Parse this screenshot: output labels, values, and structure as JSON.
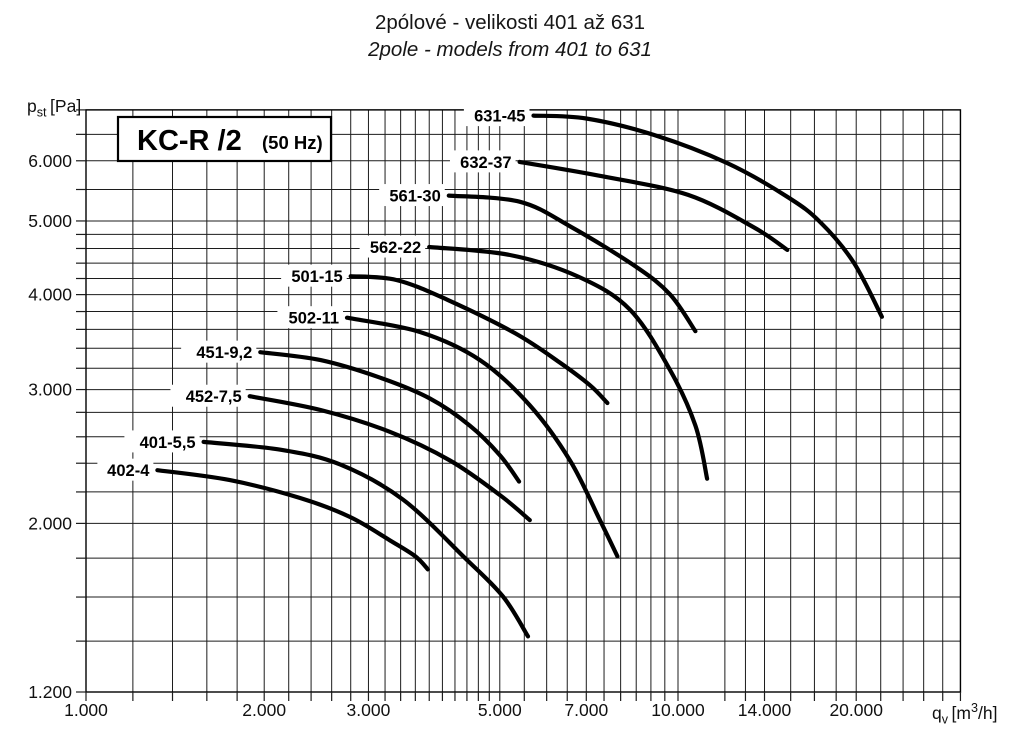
{
  "title": {
    "line1": "2pólové - velikosti 401 až 631",
    "line2": "2pole - models from 401 to 631"
  },
  "model_box": {
    "main": "KC-R /2",
    "suffix": "(50 Hz)"
  },
  "axes": {
    "y": {
      "pre": "p",
      "sub": "st",
      "post": "[Pa]"
    },
    "x": {
      "pre": "q",
      "sub": "v",
      "mid": "[m",
      "sup": "3",
      "end": "/h]"
    }
  },
  "colors": {
    "curve": "#000000",
    "grid": "#1c1c1c",
    "text": "#111111",
    "background": "#ffffff"
  },
  "chart_data": {
    "type": "line",
    "title": "KC-R /2 (50 Hz)",
    "xlabel": "qv [m3/h]",
    "ylabel": "pst [Pa]",
    "x_axis": {
      "scale": "log",
      "range": [
        1000,
        30000
      ],
      "ticks": [
        {
          "value": 1000,
          "label": "1.000"
        },
        {
          "value": 2000,
          "label": "2.000"
        },
        {
          "value": 3000,
          "label": "3.000"
        },
        {
          "value": 5000,
          "label": "5.000"
        },
        {
          "value": 7000,
          "label": "7.000"
        },
        {
          "value": 10000,
          "label": "10.000"
        },
        {
          "value": 14000,
          "label": "14.000"
        },
        {
          "value": 20000,
          "label": "20.000"
        }
      ]
    },
    "y_axis": {
      "scale": "log",
      "range": [
        1200,
        7000
      ],
      "ticks": [
        {
          "value": 6000,
          "label": "6.000"
        },
        {
          "value": 5000,
          "label": "5.000"
        },
        {
          "value": 4000,
          "label": "4.000"
        },
        {
          "value": 3000,
          "label": "3.000"
        },
        {
          "value": 2000,
          "label": "2.000"
        },
        {
          "value": 1200,
          "label": "1.200"
        }
      ]
    },
    "grid": {
      "x_lines": [
        1000,
        1200,
        1400,
        1600,
        1800,
        2000,
        2200,
        2400,
        2600,
        2800,
        3000,
        3200,
        3400,
        3600,
        3800,
        4000,
        4200,
        4400,
        4600,
        4800,
        5000,
        5500,
        6000,
        6500,
        7000,
        7500,
        8000,
        8500,
        9000,
        9500,
        10000,
        12000,
        13000,
        14000,
        15500,
        17000,
        18500,
        20000,
        22000,
        24000,
        26000,
        28000,
        30000
      ],
      "y_lines": [
        1200,
        1400,
        1600,
        1800,
        2000,
        2200,
        2400,
        2600,
        2800,
        3000,
        3200,
        3400,
        3600,
        3800,
        4000,
        4200,
        4400,
        4600,
        4800,
        5000,
        5500,
        6000,
        6500,
        7000
      ]
    },
    "series": [
      {
        "name": "631-45",
        "points": [
          [
            5700,
            6880
          ],
          [
            7000,
            6820
          ],
          [
            9100,
            6490
          ],
          [
            12100,
            5960
          ],
          [
            15300,
            5380
          ],
          [
            17400,
            4980
          ],
          [
            19800,
            4410
          ],
          [
            22100,
            3740
          ]
        ]
      },
      {
        "name": "632-37",
        "points": [
          [
            5400,
            5980
          ],
          [
            7500,
            5720
          ],
          [
            10400,
            5410
          ],
          [
            13400,
            4910
          ],
          [
            15300,
            4580
          ]
        ]
      },
      {
        "name": "561-30",
        "points": [
          [
            4100,
            5400
          ],
          [
            5400,
            5300
          ],
          [
            6600,
            4910
          ],
          [
            8500,
            4350
          ],
          [
            9700,
            4000
          ],
          [
            10700,
            3580
          ]
        ]
      },
      {
        "name": "562-22",
        "points": [
          [
            3800,
            4620
          ],
          [
            5200,
            4510
          ],
          [
            6800,
            4220
          ],
          [
            8300,
            3820
          ],
          [
            9700,
            3180
          ],
          [
            10700,
            2690
          ],
          [
            11200,
            2290
          ]
        ]
      },
      {
        "name": "501-15",
        "points": [
          [
            2800,
            4230
          ],
          [
            3350,
            4180
          ],
          [
            4100,
            3930
          ],
          [
            5300,
            3560
          ],
          [
            6300,
            3260
          ],
          [
            7100,
            3040
          ],
          [
            7600,
            2880
          ]
        ]
      },
      {
        "name": "502-11",
        "points": [
          [
            2760,
            3730
          ],
          [
            3670,
            3570
          ],
          [
            4630,
            3280
          ],
          [
            5620,
            2860
          ],
          [
            6570,
            2420
          ],
          [
            7380,
            2020
          ],
          [
            7900,
            1810
          ]
        ]
      },
      {
        "name": "451-9,2",
        "points": [
          [
            1970,
            3360
          ],
          [
            2490,
            3280
          ],
          [
            3140,
            3110
          ],
          [
            3810,
            2920
          ],
          [
            4450,
            2690
          ],
          [
            5000,
            2460
          ],
          [
            5390,
            2270
          ]
        ]
      },
      {
        "name": "452-7,5",
        "points": [
          [
            1890,
            2940
          ],
          [
            2490,
            2820
          ],
          [
            3260,
            2640
          ],
          [
            4120,
            2420
          ],
          [
            5000,
            2180
          ],
          [
            5620,
            2020
          ]
        ]
      },
      {
        "name": "401-5,5",
        "points": [
          [
            1580,
            2560
          ],
          [
            2130,
            2500
          ],
          [
            2690,
            2390
          ],
          [
            3430,
            2150
          ],
          [
            4370,
            1800
          ],
          [
            5070,
            1600
          ],
          [
            5580,
            1420
          ]
        ]
      },
      {
        "name": "402-4",
        "points": [
          [
            1320,
            2350
          ],
          [
            1750,
            2280
          ],
          [
            2300,
            2160
          ],
          [
            2790,
            2040
          ],
          [
            3260,
            1900
          ],
          [
            3600,
            1810
          ],
          [
            3780,
            1740
          ]
        ]
      }
    ]
  }
}
